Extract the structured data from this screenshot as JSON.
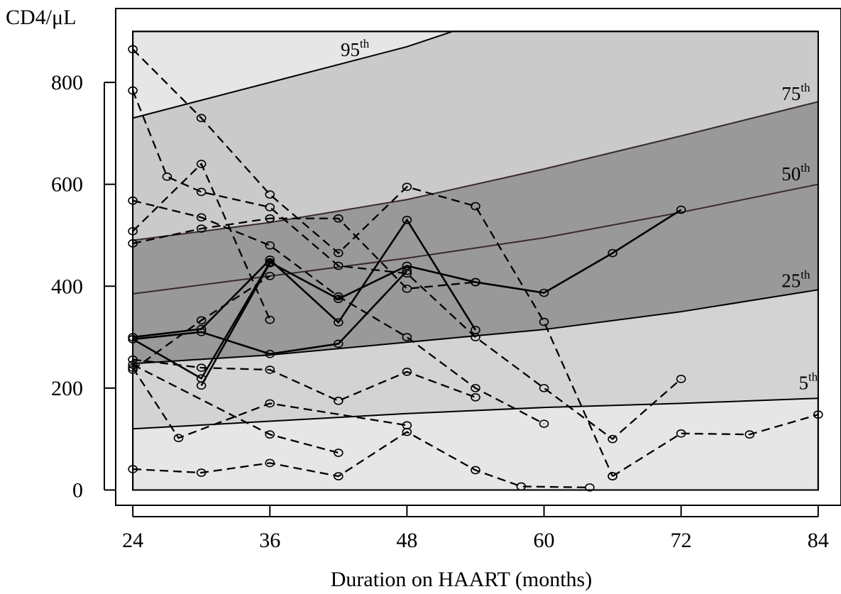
{
  "chart_data": {
    "type": "line",
    "title": "",
    "xlabel": "Duration on HAART (months)",
    "ylabel": "CD4/μL",
    "xlim": [
      22.5,
      86
    ],
    "ylim": [
      -30,
      945
    ],
    "x_ticks": [
      24,
      36,
      48,
      60,
      72,
      84
    ],
    "x_tick_labels": [
      "24",
      "36",
      "48",
      "60",
      "72",
      "84"
    ],
    "y_ticks": [
      0,
      200,
      400,
      600,
      800
    ],
    "y_tick_labels": [
      "0",
      "200",
      "400",
      "600",
      "800"
    ],
    "grid": false,
    "legend": "none",
    "band_region": {
      "x": [
        24,
        84
      ],
      "y": [
        0,
        900
      ]
    },
    "percentile_curves": [
      {
        "label_main": "95",
        "label_sup": "th",
        "x": [
          24,
          36,
          48,
          52,
          84
        ],
        "y": [
          730,
          800,
          870,
          900,
          900
        ]
      },
      {
        "label_main": "75",
        "label_sup": "th",
        "x": [
          24,
          36,
          48,
          60,
          72,
          84
        ],
        "y": [
          490,
          525,
          570,
          630,
          695,
          762
        ]
      },
      {
        "label_main": "50",
        "label_sup": "th",
        "x": [
          24,
          36,
          48,
          60,
          72,
          84
        ],
        "y": [
          385,
          420,
          455,
          495,
          545,
          600
        ]
      },
      {
        "label_main": "25",
        "label_sup": "th",
        "x": [
          24,
          36,
          48,
          60,
          72,
          84
        ],
        "y": [
          248,
          265,
          290,
          315,
          350,
          393
        ]
      },
      {
        "label_main": "5",
        "label_sup": "th",
        "x": [
          24,
          36,
          48,
          60,
          72,
          84
        ],
        "y": [
          120,
          135,
          150,
          162,
          170,
          180
        ]
      }
    ],
    "percentile_label_positions": [
      {
        "x": 42.2,
        "y": 852
      },
      {
        "x": 80.8,
        "y": 765
      },
      {
        "x": 80.8,
        "y": 608
      },
      {
        "x": 80.8,
        "y": 398
      },
      {
        "x": 82.3,
        "y": 198
      }
    ],
    "fills": {
      "outer": "#e6e6e6",
      "p5_p25": "#d3d3d3",
      "p25_p75": "#999999",
      "p75_p95": "#cacaca"
    },
    "series": [
      {
        "style": "solid",
        "x": [
          24,
          30,
          36,
          42,
          48,
          54
        ],
        "y": [
          300,
          316,
          452,
          329,
          530,
          314
        ]
      },
      {
        "style": "solid",
        "x": [
          24,
          30,
          36,
          42,
          48,
          54,
          60,
          66,
          72
        ],
        "y": [
          296,
          219,
          447,
          375,
          440,
          408,
          387,
          465,
          550
        ]
      },
      {
        "style": "solid",
        "x": [
          24,
          30,
          36,
          42,
          48
        ],
        "y": [
          296,
          310,
          267,
          287,
          430
        ]
      },
      {
        "style": "solid",
        "x": [
          30,
          36
        ],
        "y": [
          205,
          445
        ]
      },
      {
        "style": "dashed",
        "x": [
          24,
          27,
          30,
          36,
          42,
          48,
          54,
          60,
          66,
          72
        ],
        "y": [
          784,
          615,
          585,
          555,
          440,
          425,
          300,
          200,
          100,
          218
        ]
      },
      {
        "style": "dashed",
        "x": [
          24,
          30,
          36,
          42,
          48,
          54,
          60,
          66
        ],
        "y": [
          865,
          730,
          580,
          465,
          595,
          557,
          330,
          27
        ]
      },
      {
        "style": "dashed",
        "x": [
          24,
          30,
          36,
          42,
          48,
          54,
          60
        ],
        "y": [
          568,
          535,
          480,
          380,
          300,
          200,
          130
        ]
      },
      {
        "style": "dashed",
        "x": [
          24,
          30,
          36,
          42,
          48,
          54
        ],
        "y": [
          484,
          513,
          533,
          533,
          395,
          408
        ]
      },
      {
        "style": "dashed",
        "x": [
          24,
          30,
          36
        ],
        "y": [
          508,
          640,
          334
        ]
      },
      {
        "style": "dashed",
        "x": [
          24,
          30,
          36
        ],
        "y": [
          236,
          333,
          420
        ]
      },
      {
        "style": "dashed",
        "x": [
          24,
          30,
          36,
          42,
          48,
          54
        ],
        "y": [
          256,
          240,
          236,
          175,
          232,
          182
        ]
      },
      {
        "style": "dashed",
        "x": [
          24,
          28,
          36,
          48
        ],
        "y": [
          240,
          102,
          170,
          127
        ]
      },
      {
        "style": "dashed",
        "x": [
          24,
          36,
          42
        ],
        "y": [
          246,
          109,
          73
        ]
      },
      {
        "style": "dashed",
        "x": [
          24,
          30,
          36,
          42,
          48,
          54,
          58,
          64
        ],
        "y": [
          41,
          34,
          53,
          27,
          114,
          39,
          7,
          5
        ]
      },
      {
        "style": "dashed",
        "x": [
          66,
          72,
          78,
          84
        ],
        "y": [
          27,
          111,
          109,
          148
        ]
      }
    ]
  }
}
